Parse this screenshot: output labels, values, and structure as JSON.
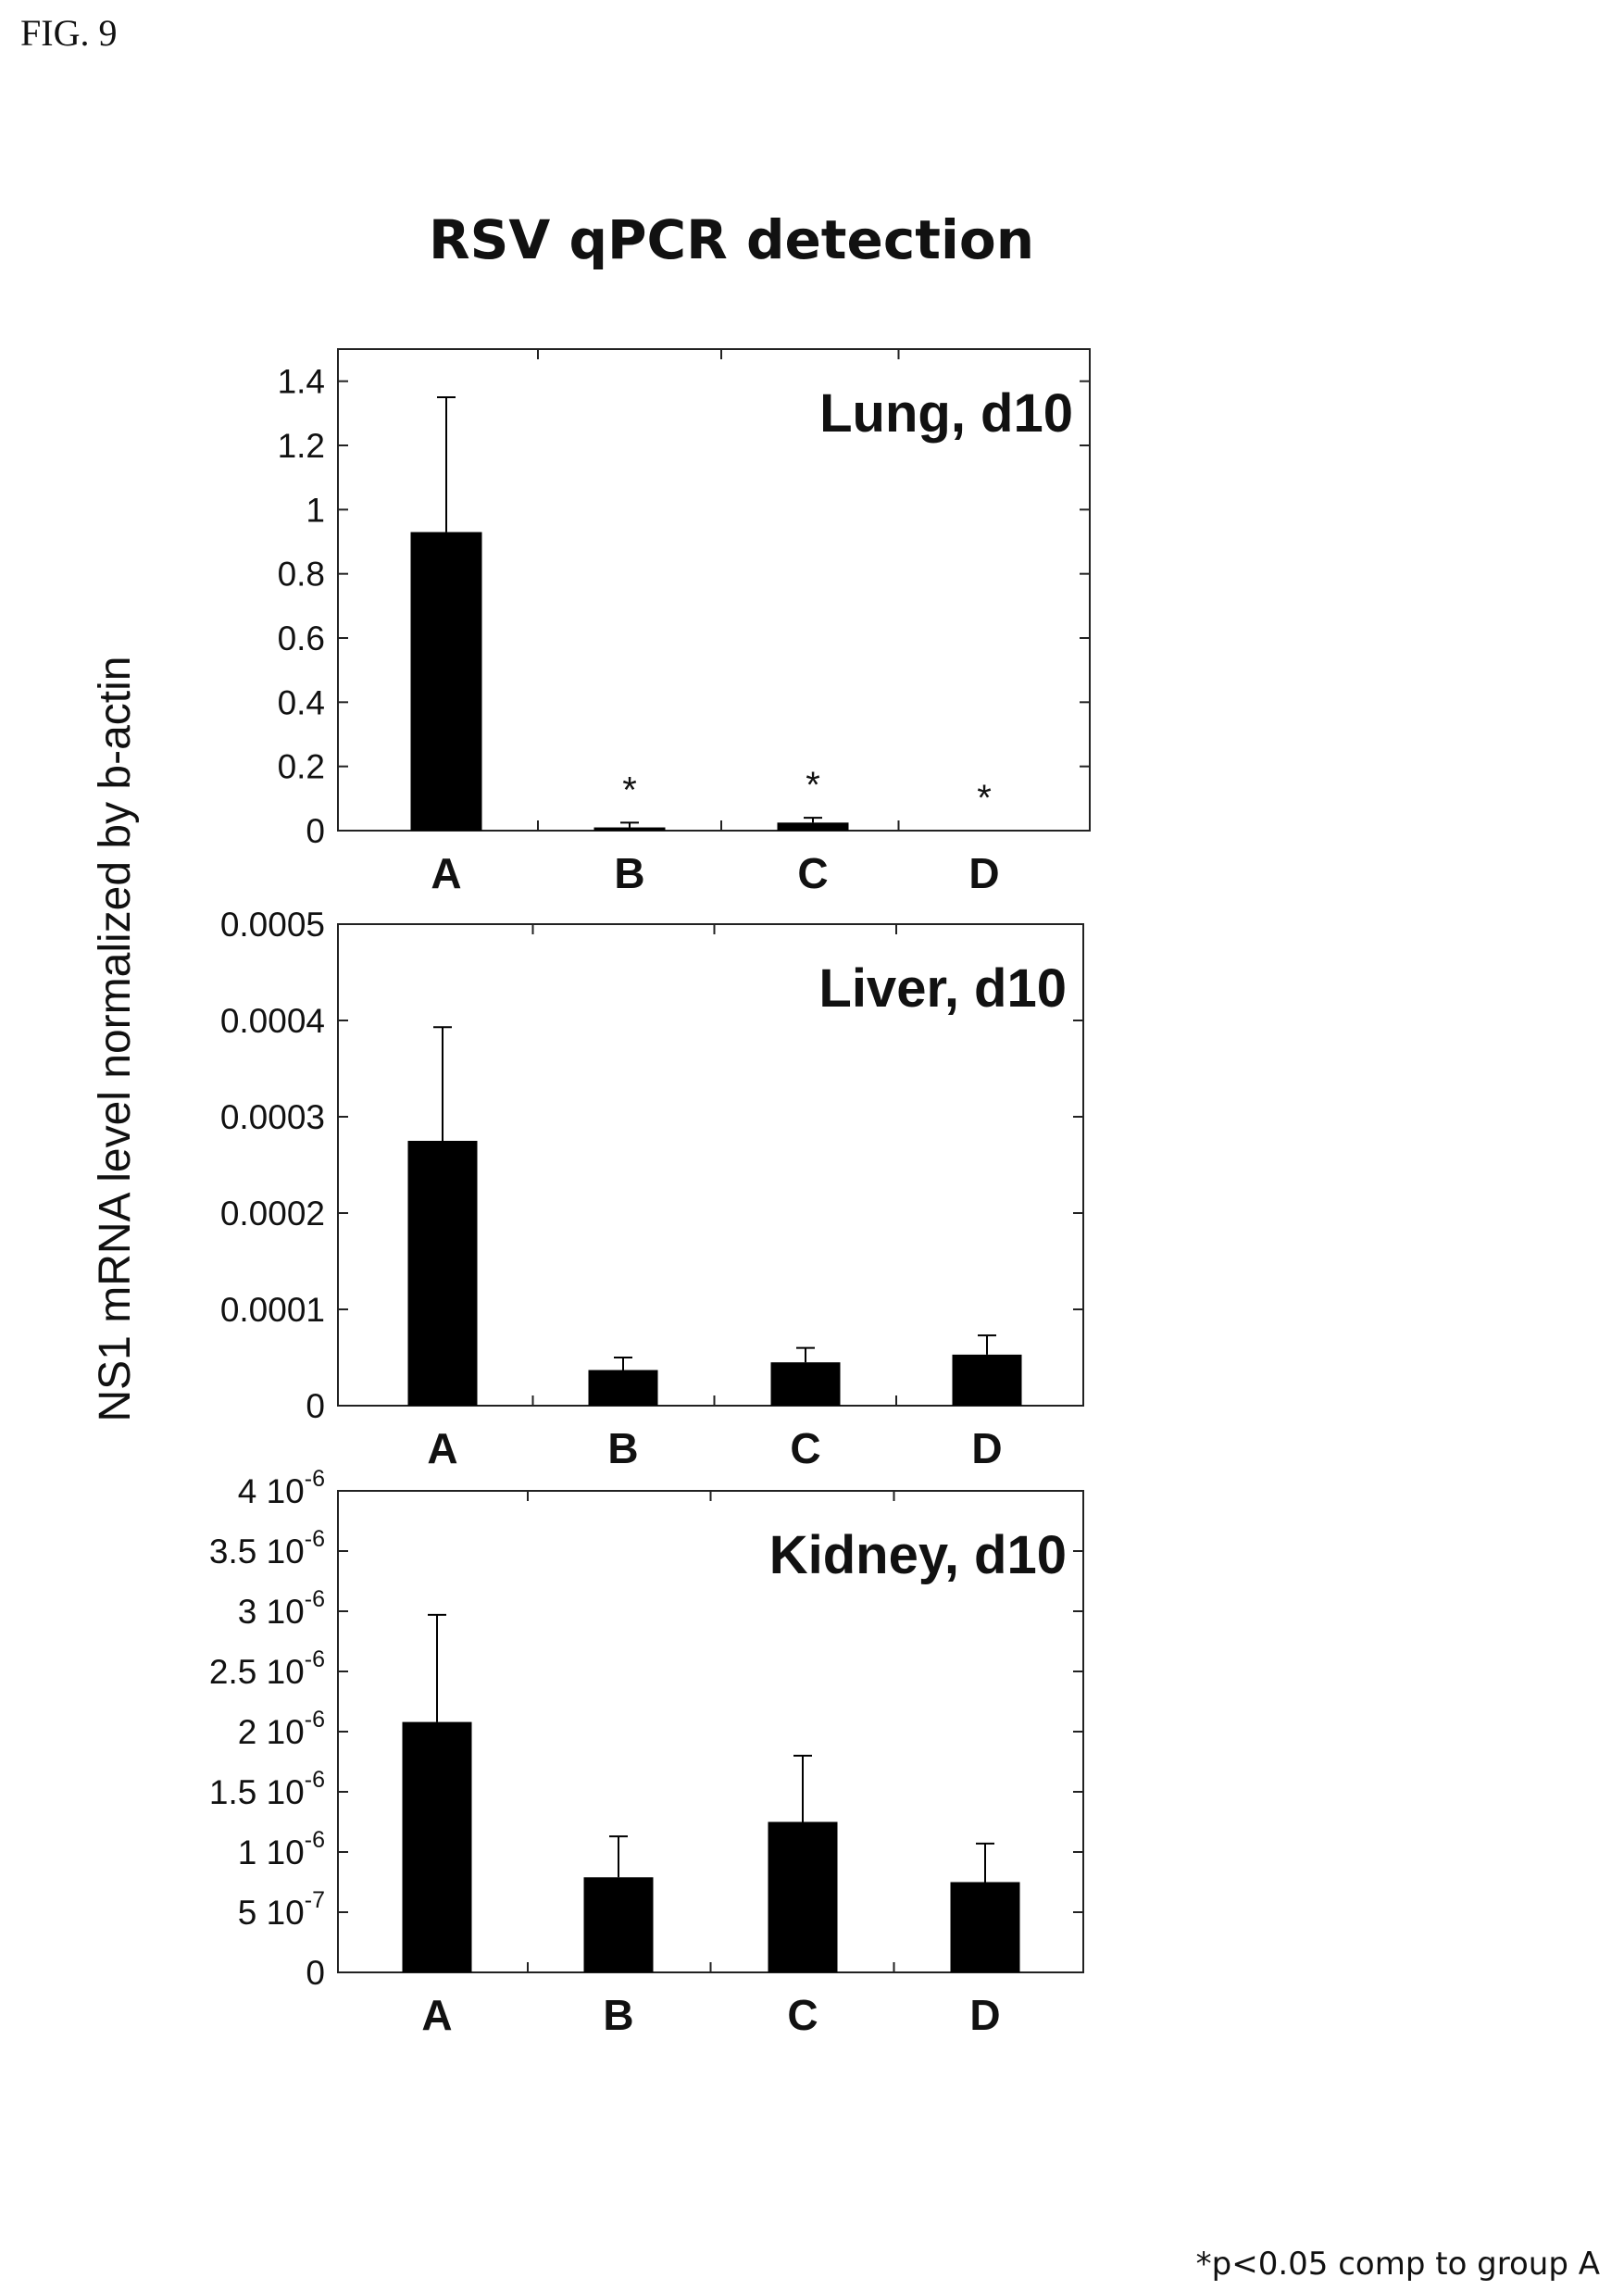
{
  "figure": {
    "label": "FIG. 9",
    "title": "RSV qPCR detection",
    "y_axis_title": "NS1 mRNA level normalized by b-actin",
    "footnote": "*p<0.05 comp to group A"
  },
  "chart_data": [
    {
      "type": "bar",
      "title": "Lung, d10",
      "categories": [
        "A",
        "B",
        "C",
        "D"
      ],
      "values": [
        0.93,
        0.01,
        0.025,
        0.0
      ],
      "error_upper": [
        1.35,
        0.025,
        0.04,
        0.0
      ],
      "significance": [
        "",
        "*",
        "*",
        "*"
      ],
      "ylim": [
        0,
        1.5
      ],
      "yticks": [
        0,
        0.2,
        0.4,
        0.6,
        0.8,
        1.0,
        1.2,
        1.4
      ],
      "yticklabels": [
        "0",
        "0.2",
        "0.4",
        "0.6",
        "0.8",
        "1",
        "1.2",
        "1.4"
      ],
      "xlabel": "",
      "ylabel": "NS1 mRNA level normalized by b-actin"
    },
    {
      "type": "bar",
      "title": "Liver, d10",
      "categories": [
        "A",
        "B",
        "C",
        "D"
      ],
      "values": [
        0.000275,
        3.7e-05,
        4.5e-05,
        5.3e-05
      ],
      "error_upper": [
        0.000393,
        5e-05,
        6e-05,
        7.3e-05
      ],
      "significance": [
        "",
        "",
        "",
        ""
      ],
      "ylim": [
        0,
        0.0005
      ],
      "yticks": [
        0,
        0.0001,
        0.0002,
        0.0003,
        0.0004,
        0.0005
      ],
      "yticklabels": [
        "0",
        "0.0001",
        "0.0002",
        "0.0003",
        "0.0004",
        "0.0005"
      ],
      "xlabel": "",
      "ylabel": "NS1 mRNA level normalized by b-actin"
    },
    {
      "type": "bar",
      "title": "Kidney, d10",
      "categories": [
        "A",
        "B",
        "C",
        "D"
      ],
      "values": [
        2.08e-06,
        7.9e-07,
        1.25e-06,
        7.5e-07
      ],
      "error_upper": [
        2.97e-06,
        1.13e-06,
        1.8e-06,
        1.07e-06
      ],
      "significance": [
        "",
        "",
        "",
        ""
      ],
      "ylim": [
        0,
        4e-06
      ],
      "yticks": [
        0,
        5e-07,
        1e-06,
        1.5e-06,
        2e-06,
        2.5e-06,
        3e-06,
        3.5e-06,
        4e-06
      ],
      "yticklabels": [
        {
          "mantissa": "0",
          "exponent": ""
        },
        {
          "mantissa": "5 10",
          "exponent": "-7"
        },
        {
          "mantissa": "1 10",
          "exponent": "-6"
        },
        {
          "mantissa": "1.5 10",
          "exponent": "-6"
        },
        {
          "mantissa": "2 10",
          "exponent": "-6"
        },
        {
          "mantissa": "2.5 10",
          "exponent": "-6"
        },
        {
          "mantissa": "3 10",
          "exponent": "-6"
        },
        {
          "mantissa": "3.5 10",
          "exponent": "-6"
        },
        {
          "mantissa": "4 10",
          "exponent": "-6"
        }
      ],
      "xlabel": "",
      "ylabel": "NS1 mRNA level normalized by b-actin"
    }
  ],
  "colors": {
    "bar": "#000000",
    "axis": "#222222",
    "text": "#111111",
    "background": "#ffffff"
  }
}
